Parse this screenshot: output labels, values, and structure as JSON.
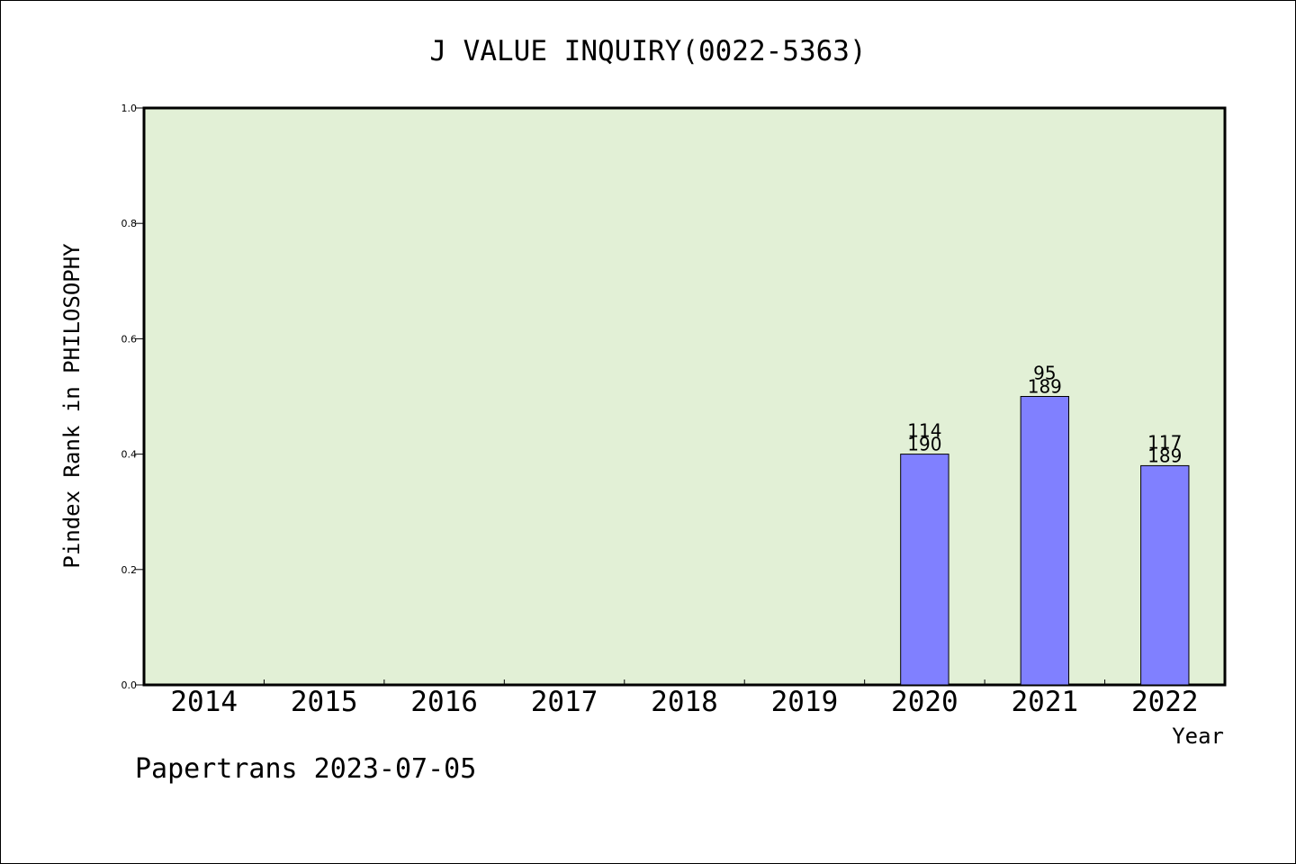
{
  "chart_data": {
    "type": "bar",
    "title": "J VALUE INQUIRY(0022-5363)",
    "xlabel": "Year",
    "ylabel": "Pindex Rank in PHILOSOPHY",
    "categories": [
      "2014",
      "2015",
      "2016",
      "2017",
      "2018",
      "2019",
      "2020",
      "2021",
      "2022"
    ],
    "values": [
      null,
      null,
      null,
      null,
      null,
      null,
      0.4,
      0.5,
      0.38
    ],
    "bar_labels": [
      null,
      null,
      null,
      null,
      null,
      null,
      {
        "rank": "114",
        "total": "190"
      },
      {
        "rank": "95",
        "total": "189"
      },
      {
        "rank": "117",
        "total": "189"
      }
    ],
    "ylim": [
      0,
      1.0
    ],
    "yticks": [
      "0.0",
      "0.2",
      "0.4",
      "0.6",
      "0.8",
      "1.0"
    ],
    "grid": false,
    "legend": "none",
    "colors": {
      "plot_background": "#e2f0d6",
      "bar_fill": "#8080ff",
      "bar_stroke": "#000000",
      "axis": "#000000"
    }
  },
  "footer": {
    "credit": "Papertrans 2023-07-05"
  }
}
